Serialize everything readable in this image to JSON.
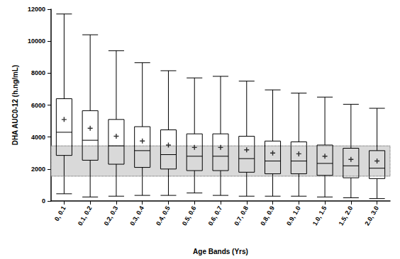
{
  "chart_data": {
    "type": "boxplot",
    "x_label": "Age Bands (Yrs)",
    "y_label": "DHA AUC0-12 (h.ng/mL)",
    "categories": [
      "0, 0.1",
      "0.1, 0.2",
      "0.2, 0.3",
      "0.3, 0.4",
      "0.4, 0.5",
      "0.5, 0.6",
      "0.6, 0.7",
      "0.7, 0.8",
      "0.8, 0.9",
      "0.9, 1.0",
      "1.0, 1.5",
      "1.5, 2.0",
      "2.0, 3.0"
    ],
    "boxes": [
      [
        450,
        2850,
        4300,
        6400,
        11700
      ],
      [
        250,
        2550,
        3800,
        5650,
        10400
      ],
      [
        300,
        2300,
        3450,
        5100,
        9400
      ],
      [
        350,
        2100,
        3150,
        4650,
        8650
      ],
      [
        350,
        2000,
        2900,
        4450,
        8150
      ],
      [
        500,
        1900,
        2800,
        4200,
        7700
      ],
      [
        350,
        1900,
        2800,
        4200,
        7800
      ],
      [
        300,
        1800,
        2650,
        4050,
        7500
      ],
      [
        300,
        1700,
        2500,
        3750,
        6950
      ],
      [
        300,
        1700,
        2500,
        3700,
        6750
      ],
      [
        250,
        1600,
        2350,
        3500,
        6500
      ],
      [
        200,
        1450,
        2200,
        3300,
        6050
      ],
      [
        150,
        1400,
        2050,
        3150,
        5800
      ]
    ],
    "means": [
      5100,
      4550,
      4050,
      3750,
      3500,
      3350,
      3350,
      3200,
      3000,
      2950,
      2800,
      2600,
      2500
    ],
    "reference_band": [
      1550,
      3450
    ],
    "color": "#000000",
    "band_color": "#d9d9d9",
    "marker": "plus",
    "ylim": [
      0,
      12000
    ],
    "yticks": [
      0,
      2000,
      4000,
      6000,
      8000,
      10000,
      12000
    ],
    "grid": false
  }
}
